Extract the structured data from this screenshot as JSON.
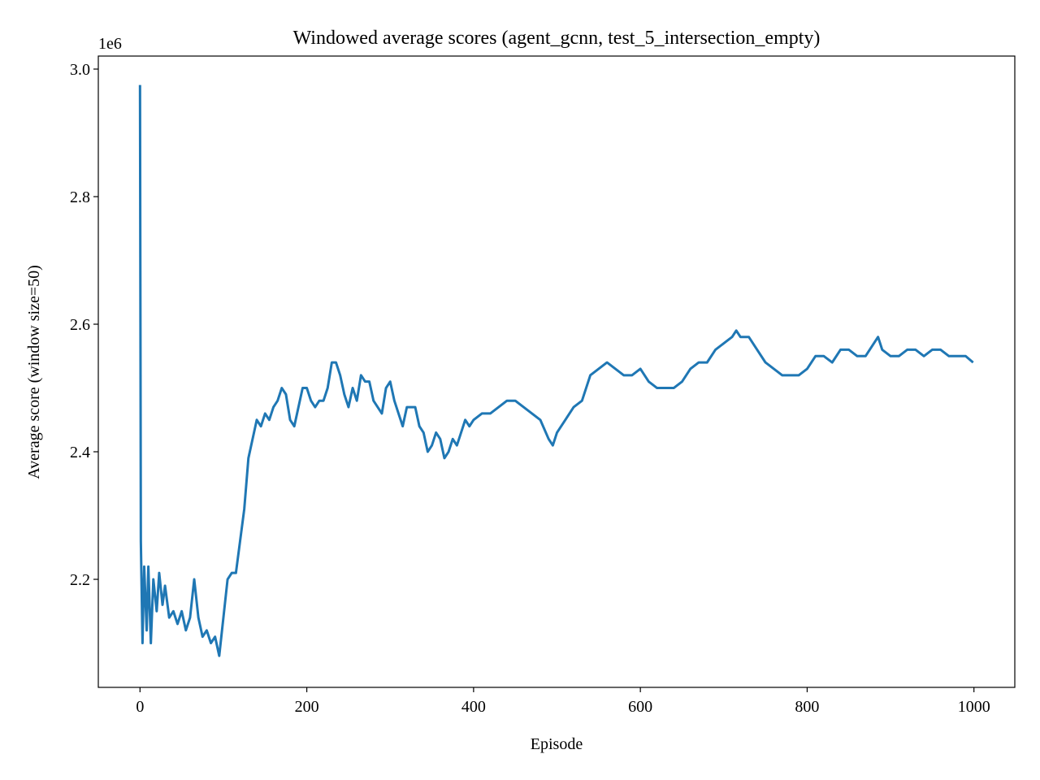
{
  "chart_data": {
    "type": "line",
    "title": "Windowed average scores (agent_gcnn, test_5_intersection_empty)",
    "xlabel": "Episode",
    "ylabel": "Average score (window size=50)",
    "y_offset_label": "1e6",
    "xlim": [
      -50,
      1049
    ],
    "ylim": [
      2.0306,
      3.0204
    ],
    "xticks": [
      0,
      200,
      400,
      600,
      800,
      1000
    ],
    "yticks": [
      2.2,
      2.4,
      2.6,
      2.8,
      {
        "value": 3,
        "label": "3.0"
      }
    ],
    "grid": false,
    "x": [
      0,
      1,
      3,
      5,
      8,
      10,
      13,
      16,
      20,
      23,
      27,
      30,
      35,
      40,
      45,
      50,
      55,
      60,
      65,
      70,
      75,
      80,
      85,
      90,
      95,
      100,
      105,
      110,
      115,
      120,
      125,
      130,
      135,
      140,
      145,
      150,
      155,
      160,
      165,
      170,
      175,
      180,
      185,
      190,
      195,
      200,
      205,
      210,
      215,
      220,
      225,
      230,
      235,
      240,
      245,
      250,
      255,
      260,
      265,
      270,
      275,
      280,
      285,
      290,
      295,
      300,
      305,
      310,
      315,
      320,
      325,
      330,
      335,
      340,
      345,
      350,
      355,
      360,
      365,
      370,
      375,
      380,
      385,
      390,
      395,
      400,
      410,
      420,
      430,
      440,
      450,
      460,
      470,
      480,
      490,
      495,
      500,
      510,
      520,
      530,
      540,
      550,
      560,
      570,
      580,
      590,
      600,
      610,
      620,
      630,
      640,
      650,
      660,
      670,
      680,
      690,
      700,
      710,
      715,
      720,
      730,
      740,
      750,
      760,
      770,
      780,
      790,
      800,
      810,
      820,
      830,
      840,
      850,
      860,
      870,
      880,
      885,
      890,
      900,
      910,
      920,
      930,
      940,
      950,
      960,
      970,
      980,
      990,
      999
    ],
    "series": [
      {
        "name": "Average score",
        "color": "#1f77b4",
        "values": [
          2.975,
          2.26,
          2.1,
          2.22,
          2.12,
          2.22,
          2.1,
          2.2,
          2.15,
          2.21,
          2.16,
          2.19,
          2.14,
          2.15,
          2.13,
          2.15,
          2.12,
          2.14,
          2.2,
          2.14,
          2.11,
          2.12,
          2.1,
          2.11,
          2.08,
          2.14,
          2.2,
          2.21,
          2.21,
          2.26,
          2.31,
          2.39,
          2.42,
          2.45,
          2.44,
          2.46,
          2.45,
          2.47,
          2.48,
          2.5,
          2.49,
          2.45,
          2.44,
          2.47,
          2.5,
          2.5,
          2.48,
          2.47,
          2.48,
          2.48,
          2.5,
          2.54,
          2.54,
          2.52,
          2.49,
          2.47,
          2.5,
          2.48,
          2.52,
          2.51,
          2.51,
          2.48,
          2.47,
          2.46,
          2.5,
          2.51,
          2.48,
          2.46,
          2.44,
          2.47,
          2.47,
          2.47,
          2.44,
          2.43,
          2.4,
          2.41,
          2.43,
          2.42,
          2.39,
          2.4,
          2.42,
          2.41,
          2.43,
          2.45,
          2.44,
          2.45,
          2.46,
          2.46,
          2.47,
          2.48,
          2.48,
          2.47,
          2.46,
          2.45,
          2.42,
          2.41,
          2.43,
          2.45,
          2.47,
          2.48,
          2.52,
          2.53,
          2.54,
          2.53,
          2.52,
          2.52,
          2.53,
          2.51,
          2.5,
          2.5,
          2.5,
          2.51,
          2.53,
          2.54,
          2.54,
          2.56,
          2.57,
          2.58,
          2.59,
          2.58,
          2.58,
          2.56,
          2.54,
          2.53,
          2.52,
          2.52,
          2.52,
          2.53,
          2.55,
          2.55,
          2.54,
          2.56,
          2.56,
          2.55,
          2.55,
          2.57,
          2.58,
          2.56,
          2.55,
          2.55,
          2.56,
          2.56,
          2.55,
          2.56,
          2.56,
          2.55,
          2.55,
          2.55,
          2.54
        ]
      }
    ]
  }
}
